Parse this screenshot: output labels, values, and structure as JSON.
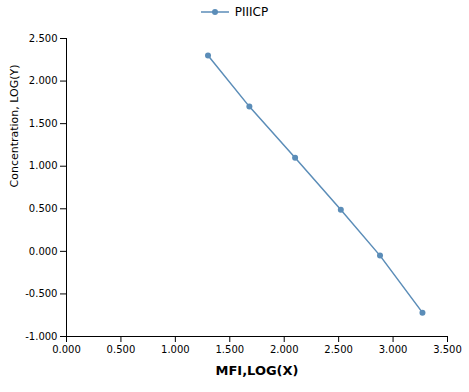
{
  "chart_data": {
    "type": "line",
    "x": [
      1.3,
      1.68,
      2.1,
      2.52,
      2.88,
      3.27
    ],
    "series": [
      {
        "name": "PIIICP",
        "color": "#5B8DB8",
        "marker": "circle",
        "values": [
          2.3,
          1.7,
          1.1,
          0.49,
          -0.05,
          -0.72
        ]
      }
    ],
    "xlabel": "MFI,LOG(X)",
    "ylabel": "Concentration, LOG(Y)",
    "xlim": [
      0.0,
      3.5
    ],
    "ylim": [
      -1.0,
      2.5
    ],
    "xticks": [
      {
        "value": 0,
        "label": "0.000"
      },
      {
        "value": 0.5,
        "label": "0.500"
      },
      {
        "value": 1,
        "label": "1.000"
      },
      {
        "value": 1.5,
        "label": "1.500"
      },
      {
        "value": 2,
        "label": "2.000"
      },
      {
        "value": 2.5,
        "label": "2.500"
      },
      {
        "value": 3,
        "label": "3.000"
      },
      {
        "value": 3.5,
        "label": "3.500"
      }
    ],
    "yticks": [
      {
        "value": -1,
        "label": "-1.000"
      },
      {
        "value": -0.5,
        "label": "-0.500"
      },
      {
        "value": 0,
        "label": "0.000"
      },
      {
        "value": 0.5,
        "label": "0.500"
      },
      {
        "value": 1,
        "label": "1.000"
      },
      {
        "value": 1.5,
        "label": "1.500"
      },
      {
        "value": 2,
        "label": "2.000"
      },
      {
        "value": 2.5,
        "label": "2.500"
      }
    ],
    "legend": "top",
    "grid": false
  }
}
